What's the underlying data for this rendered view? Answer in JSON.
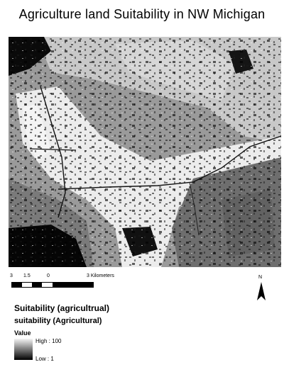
{
  "title": "Agriculture land Suitability in NW Michigan",
  "scale_bar": {
    "labels": [
      "3",
      "1.5",
      "0",
      "3 Kilometers"
    ]
  },
  "north_arrow": {
    "label": "N"
  },
  "legend": {
    "layer_title": "Suitability (agricultrual)",
    "layer_subtitle": "suitability (Agricultural)",
    "field_label": "Value",
    "high_label": "High : 100",
    "low_label": "Low : 1"
  },
  "colors": {
    "high": "#f5f5f5",
    "mid": "#7a7a7a",
    "low": "#000000"
  }
}
